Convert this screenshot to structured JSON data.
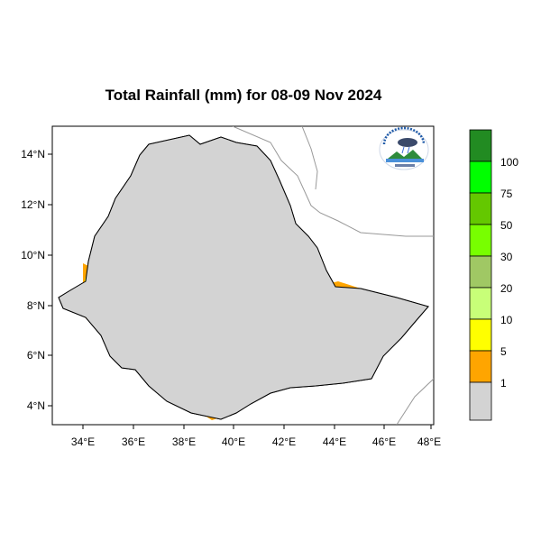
{
  "title": "Total Rainfall (mm) for 08-09 Nov 2024",
  "map": {
    "lon_range": [
      33,
      48.1
    ],
    "lat_range": [
      3.2,
      15
    ],
    "lon_ticks": [
      "34°E",
      "36°E",
      "38°E",
      "40°E",
      "42°E",
      "44°E",
      "46°E",
      "48°E"
    ],
    "lat_ticks": [
      "14°N",
      "12°N",
      "10°N",
      "8°N",
      "6°N",
      "4°N"
    ],
    "land_color": "#d3d3d3",
    "border_color": "#000000"
  },
  "legend": {
    "labels": [
      "1",
      "5",
      "10",
      "20",
      "30",
      "50",
      "75",
      "100"
    ],
    "colors": [
      "#d3d3d3",
      "#ffa500",
      "#ffff00",
      "#c8ff78",
      "#a0c864",
      "#78ff00",
      "#64c800",
      "#00ff00",
      "#228b22"
    ]
  },
  "logo": {
    "icon": "meteorology-agency-logo"
  }
}
